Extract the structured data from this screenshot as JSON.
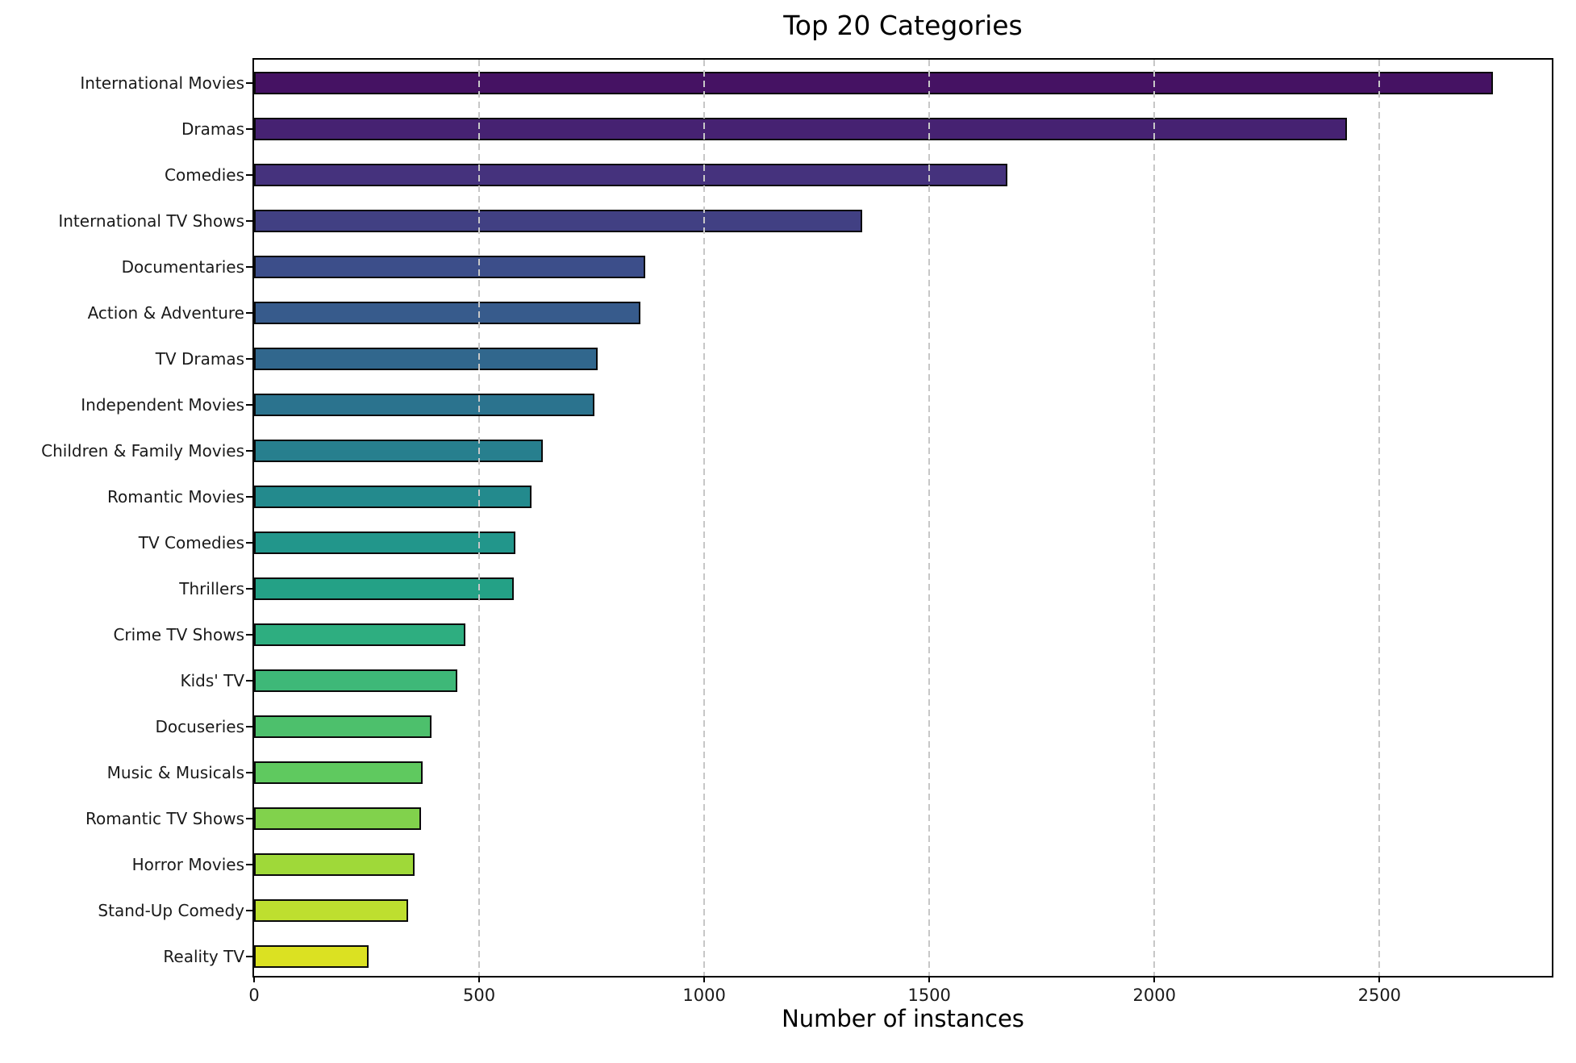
{
  "figure": {
    "title": "Top 20 Categories",
    "xlabel": "Number of instances"
  },
  "chart_data": {
    "type": "bar",
    "orientation": "horizontal",
    "title": "Top 20 Categories",
    "xlabel": "Number of instances",
    "ylabel": "",
    "categories": [
      "International Movies",
      "Dramas",
      "Comedies",
      "International TV Shows",
      "Documentaries",
      "Action & Adventure",
      "TV Dramas",
      "Independent Movies",
      "Children & Family Movies",
      "Romantic Movies",
      "TV Comedies",
      "Thrillers",
      "Crime TV Shows",
      "Kids' TV",
      "Docuseries",
      "Music & Musicals",
      "Romantic TV Shows",
      "Horror Movies",
      "Stand-Up Comedy",
      "Reality TV"
    ],
    "values": [
      2752,
      2427,
      1674,
      1351,
      869,
      859,
      763,
      756,
      641,
      616,
      581,
      577,
      470,
      451,
      395,
      375,
      370,
      357,
      343,
      255
    ],
    "bar_colors": [
      "#451263",
      "#462272",
      "#45327d",
      "#414083",
      "#3c4e8a",
      "#375b8c",
      "#31678d",
      "#2b738e",
      "#277f8e",
      "#238a8d",
      "#22968b",
      "#24a186",
      "#2eae80",
      "#3eb878",
      "#4dc06c",
      "#5fc95f",
      "#81d24c",
      "#9fd939",
      "#bedf2f",
      "#dbe122"
    ],
    "bar_edge_color": "#0a0a0a",
    "background_color": "#ffffff",
    "grid_color": "#c7c7c7",
    "xlim": [
      0,
      2890
    ],
    "xticks": [
      0,
      500,
      1000,
      1500,
      2000,
      2500
    ],
    "grid": "vertical dashed, drawn above bars",
    "legend": "none"
  }
}
